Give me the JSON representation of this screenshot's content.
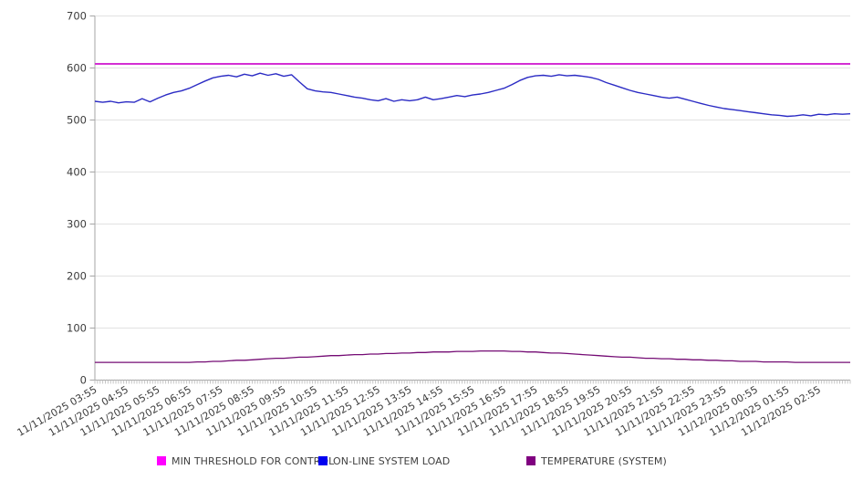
{
  "chart_data": {
    "type": "line",
    "title": "",
    "xlabel": "",
    "ylabel": "",
    "grid": "horizontal",
    "legend_position": "bottom",
    "y_axis": {
      "min": 0,
      "max": 700,
      "step": 100,
      "tick_labels": [
        "0",
        "100",
        "200",
        "300",
        "400",
        "500",
        "600",
        "700"
      ]
    },
    "x_minor_tick_interval_minutes": 5,
    "x_labels": [
      "11/11/2025 03:55",
      "11/11/2025 04:55",
      "11/11/2025 05:55",
      "11/11/2025 06:55",
      "11/11/2025 07:55",
      "11/11/2025 08:55",
      "11/11/2025 09:55",
      "11/11/2025 10:55",
      "11/11/2025 11:55",
      "11/11/2025 12:55",
      "11/11/2025 13:55",
      "11/11/2025 14:55",
      "11/11/2025 15:55",
      "11/11/2025 16:55",
      "11/11/2025 17:55",
      "11/11/2025 18:55",
      "11/11/2025 19:55",
      "11/11/2025 20:55",
      "11/11/2025 21:55",
      "11/11/2025 22:55",
      "11/11/2025 23:55",
      "11/12/2025 00:55",
      "11/12/2025 01:55",
      "11/12/2025 02:55"
    ],
    "series": [
      {
        "name": "MIN THRESHOLD FOR CONTROL",
        "type": "constant",
        "value": 608,
        "color": "#d32ed3",
        "swatch_color": "#ff00ff",
        "line_width": 2
      },
      {
        "name": "ON-LINE SYSTEM LOAD",
        "type": "line",
        "color": "#2b2bc4",
        "swatch_color": "#0000f0",
        "line_width": 1.4,
        "sample_interval_minutes": 15,
        "values": [
          536,
          534,
          536,
          533,
          535,
          534,
          541,
          535,
          542,
          548,
          553,
          556,
          561,
          568,
          575,
          581,
          584,
          586,
          583,
          588,
          585,
          590,
          586,
          589,
          584,
          587,
          573,
          560,
          556,
          554,
          553,
          550,
          547,
          544,
          542,
          539,
          537,
          541,
          536,
          539,
          537,
          539,
          544,
          539,
          541,
          544,
          547,
          545,
          548,
          550,
          553,
          557,
          561,
          568,
          576,
          582,
          585,
          586,
          584,
          587,
          585,
          586,
          584,
          582,
          578,
          572,
          567,
          562,
          557,
          553,
          550,
          547,
          544,
          542,
          544,
          540,
          536,
          532,
          528,
          525,
          522,
          520,
          518,
          516,
          514,
          512,
          510,
          509,
          507,
          508,
          510,
          508,
          511,
          510,
          512,
          511,
          512
        ]
      },
      {
        "name": "TEMPERATURE (SYSTEM)",
        "type": "line",
        "color": "#740b74",
        "swatch_color": "#800080",
        "line_width": 1.3,
        "sample_interval_minutes": 15,
        "values": [
          34,
          34,
          34,
          34,
          34,
          34,
          34,
          34,
          34,
          34,
          34,
          34,
          34,
          35,
          35,
          36,
          36,
          37,
          38,
          38,
          39,
          40,
          41,
          42,
          42,
          43,
          44,
          44,
          45,
          46,
          47,
          47,
          48,
          49,
          49,
          50,
          50,
          51,
          51,
          52,
          52,
          53,
          53,
          54,
          54,
          54,
          55,
          55,
          55,
          56,
          56,
          56,
          56,
          55,
          55,
          54,
          54,
          53,
          52,
          52,
          51,
          50,
          49,
          48,
          47,
          46,
          45,
          44,
          44,
          43,
          42,
          42,
          41,
          41,
          40,
          40,
          39,
          39,
          38,
          38,
          37,
          37,
          36,
          36,
          36,
          35,
          35,
          35,
          35,
          34,
          34,
          34,
          34,
          34,
          34,
          34,
          34
        ]
      }
    ],
    "colors": {
      "background": "#ffffff",
      "gridline": "#e2e2e2",
      "axis": "#a6a6a6",
      "minor_tick": "#c4c4c4",
      "tick_label": "#3c3c3c",
      "legend_text": "#3f3f3f"
    }
  }
}
